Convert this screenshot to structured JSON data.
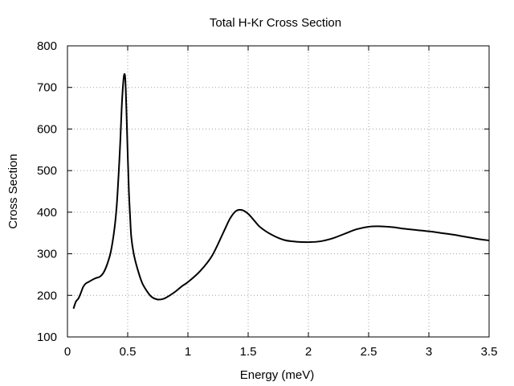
{
  "chart_data": {
    "type": "line",
    "title": "Total H-Kr Cross Section",
    "xlabel": "Energy (meV)",
    "ylabel": "Cross Section",
    "xlim": [
      0,
      3.5
    ],
    "ylim": [
      100,
      800
    ],
    "xticks": [
      0,
      0.5,
      1,
      1.5,
      2,
      2.5,
      3,
      3.5
    ],
    "xtick_labels": [
      "0",
      "0.5",
      "1",
      "1.5",
      "2",
      "2.5",
      "3",
      "3.5"
    ],
    "yticks": [
      100,
      200,
      300,
      400,
      500,
      600,
      700,
      800
    ],
    "ytick_labels": [
      "100",
      "200",
      "300",
      "400",
      "500",
      "600",
      "700",
      "800"
    ],
    "grid": true,
    "legend": "none",
    "line_color": "#000000",
    "series": [
      {
        "x": [
          0.05,
          0.07,
          0.09,
          0.11,
          0.13,
          0.15,
          0.18,
          0.21,
          0.24,
          0.27,
          0.3,
          0.33,
          0.36,
          0.39,
          0.41,
          0.43,
          0.44,
          0.45,
          0.46,
          0.47,
          0.48,
          0.49,
          0.5,
          0.51,
          0.52,
          0.53,
          0.55,
          0.58,
          0.62,
          0.66,
          0.7,
          0.75,
          0.8,
          0.85,
          0.9,
          0.95,
          1.0,
          1.1,
          1.2,
          1.3,
          1.35,
          1.4,
          1.45,
          1.5,
          1.55,
          1.6,
          1.7,
          1.8,
          1.9,
          2.0,
          2.1,
          2.2,
          2.3,
          2.4,
          2.5,
          2.6,
          2.7,
          2.8,
          2.9,
          3.0,
          3.1,
          3.2,
          3.3,
          3.4,
          3.5
        ],
        "y": [
          168,
          185,
          192,
          205,
          220,
          228,
          233,
          238,
          242,
          245,
          255,
          275,
          305,
          360,
          420,
          520,
          580,
          650,
          700,
          730,
          720,
          640,
          540,
          450,
          390,
          340,
          300,
          265,
          230,
          210,
          196,
          190,
          192,
          200,
          210,
          222,
          232,
          258,
          295,
          355,
          385,
          403,
          405,
          396,
          380,
          364,
          345,
          333,
          329,
          328,
          330,
          337,
          348,
          359,
          365,
          366,
          364,
          360,
          357,
          354,
          350,
          346,
          341,
          336,
          332
        ]
      }
    ]
  }
}
